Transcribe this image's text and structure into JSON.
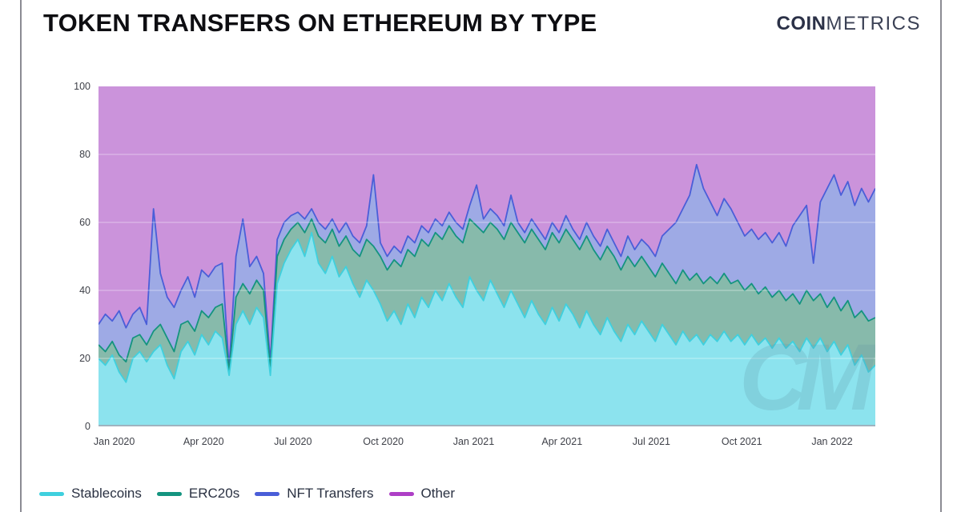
{
  "header": {
    "title": "TOKEN TRANSFERS ON ETHEREUM BY TYPE",
    "logo_bold": "COIN",
    "logo_light": "METRICS",
    "logo_color": "#2b3147"
  },
  "watermark": "CM",
  "chart_data": {
    "type": "area",
    "stacking": "percent",
    "title": "TOKEN TRANSFERS ON ETHEREUM BY TYPE",
    "grid": true,
    "legend_position": "bottom",
    "ylim": [
      0,
      100
    ],
    "y_ticks": [
      0,
      20,
      40,
      60,
      80,
      100
    ],
    "x_start_date": "2019-12-16",
    "point_interval_days": 7,
    "total_days": 791,
    "x_ticks": [
      {
        "day": 16,
        "label": "Jan 2020"
      },
      {
        "day": 107,
        "label": "Apr 2020"
      },
      {
        "day": 198,
        "label": "Jul 2020"
      },
      {
        "day": 290,
        "label": "Oct 2020"
      },
      {
        "day": 382,
        "label": "Jan 2021"
      },
      {
        "day": 472,
        "label": "Apr 2021"
      },
      {
        "day": 563,
        "label": "Jul 2021"
      },
      {
        "day": 655,
        "label": "Oct 2021"
      },
      {
        "day": 747,
        "label": "Jan 2022"
      }
    ],
    "axis_line_color": "#9fb3bf",
    "gridline_color": "rgba(255,255,255,0.45)",
    "series": [
      {
        "name": "Stablecoins",
        "line_color": "#3fd0de",
        "fill_color": "#8ce3ee",
        "values": [
          20,
          18,
          21,
          16,
          13,
          20,
          22,
          19,
          22,
          24,
          18,
          14,
          22,
          25,
          21,
          27,
          24,
          28,
          26,
          15,
          30,
          34,
          30,
          35,
          32,
          15,
          42,
          48,
          52,
          55,
          50,
          57,
          48,
          45,
          50,
          44,
          47,
          42,
          38,
          43,
          40,
          36,
          31,
          34,
          30,
          36,
          32,
          38,
          35,
          40,
          37,
          42,
          38,
          35,
          44,
          40,
          37,
          43,
          39,
          35,
          40,
          36,
          32,
          37,
          33,
          30,
          35,
          31,
          36,
          33,
          29,
          34,
          30,
          27,
          32,
          28,
          25,
          30,
          27,
          31,
          28,
          25,
          30,
          27,
          24,
          28,
          25,
          27,
          24,
          27,
          25,
          28,
          25,
          27,
          24,
          27,
          24,
          26,
          23,
          26,
          23,
          25,
          22,
          26,
          23,
          26,
          22,
          25,
          21,
          24,
          18,
          21,
          16,
          18
        ]
      },
      {
        "name": "ERC20s",
        "line_color": "#14947f",
        "fill_color": "#87baab",
        "values": [
          4,
          4,
          4,
          5,
          6,
          6,
          5,
          5,
          6,
          6,
          8,
          8,
          8,
          6,
          7,
          7,
          8,
          7,
          10,
          1,
          8,
          8,
          9,
          8,
          8,
          2,
          8,
          7,
          6,
          5,
          7,
          4,
          8,
          9,
          8,
          9,
          9,
          10,
          12,
          12,
          13,
          14,
          15,
          15,
          17,
          16,
          18,
          17,
          18,
          17,
          18,
          17,
          18,
          19,
          17,
          19,
          20,
          17,
          19,
          20,
          20,
          21,
          22,
          21,
          22,
          22,
          22,
          23,
          22,
          22,
          23,
          22,
          22,
          22,
          21,
          22,
          21,
          20,
          20,
          19,
          19,
          19,
          18,
          18,
          18,
          18,
          18,
          18,
          18,
          17,
          17,
          17,
          17,
          16,
          16,
          15,
          15,
          15,
          15,
          14,
          14,
          14,
          14,
          14,
          14,
          13,
          13,
          13,
          13,
          13,
          14,
          13,
          15,
          14
        ]
      },
      {
        "name": "NFT Transfers",
        "line_color": "#4a5ed8",
        "fill_color": "#9eaae5",
        "values": [
          6,
          11,
          6,
          13,
          10,
          7,
          8,
          6,
          36,
          15,
          12,
          13,
          10,
          13,
          10,
          12,
          12,
          12,
          12,
          1,
          12,
          19,
          8,
          7,
          5,
          2,
          5,
          5,
          4,
          3,
          4,
          3,
          4,
          4,
          3,
          4,
          4,
          4,
          4,
          4,
          21,
          4,
          4,
          4,
          4,
          4,
          4,
          4,
          4,
          4,
          4,
          4,
          4,
          4,
          4,
          12,
          4,
          4,
          4,
          4,
          8,
          3,
          3,
          3,
          3,
          3,
          3,
          3,
          4,
          3,
          3,
          4,
          4,
          4,
          5,
          4,
          4,
          6,
          5,
          5,
          6,
          6,
          8,
          13,
          18,
          18,
          25,
          32,
          28,
          22,
          20,
          22,
          22,
          17,
          16,
          16,
          16,
          16,
          16,
          17,
          16,
          20,
          26,
          25,
          11,
          27,
          35,
          36,
          34,
          35,
          33,
          36,
          35,
          38
        ]
      },
      {
        "name": "Other",
        "line_color": "#ae3fc6",
        "fill_color": "#cb93db",
        "values": [
          70,
          67,
          69,
          66,
          71,
          67,
          65,
          70,
          36,
          55,
          62,
          65,
          60,
          56,
          62,
          54,
          56,
          53,
          52,
          83,
          50,
          39,
          53,
          50,
          55,
          81,
          45,
          40,
          38,
          37,
          39,
          36,
          40,
          42,
          39,
          43,
          40,
          44,
          46,
          41,
          26,
          46,
          50,
          47,
          49,
          44,
          46,
          41,
          43,
          39,
          41,
          37,
          40,
          42,
          35,
          29,
          39,
          36,
          38,
          41,
          32,
          40,
          43,
          39,
          42,
          45,
          40,
          43,
          38,
          42,
          45,
          40,
          44,
          47,
          42,
          46,
          50,
          44,
          48,
          45,
          47,
          50,
          44,
          42,
          40,
          36,
          32,
          23,
          30,
          34,
          38,
          33,
          36,
          40,
          44,
          42,
          45,
          43,
          46,
          43,
          47,
          41,
          38,
          35,
          52,
          34,
          30,
          26,
          32,
          28,
          35,
          30,
          34,
          30
        ]
      }
    ]
  },
  "legend": {
    "items": [
      "Stablecoins",
      "ERC20s",
      "NFT Transfers",
      "Other"
    ]
  }
}
